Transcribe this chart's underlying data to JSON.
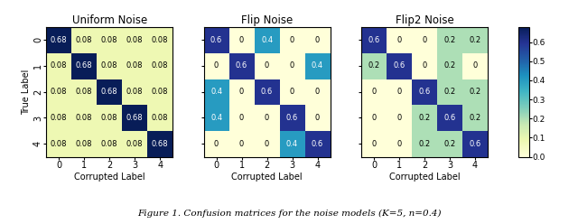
{
  "uniform_noise": [
    [
      0.68,
      0.08,
      0.08,
      0.08,
      0.08
    ],
    [
      0.08,
      0.68,
      0.08,
      0.08,
      0.08
    ],
    [
      0.08,
      0.08,
      0.68,
      0.08,
      0.08
    ],
    [
      0.08,
      0.08,
      0.08,
      0.68,
      0.08
    ],
    [
      0.08,
      0.08,
      0.08,
      0.08,
      0.68
    ]
  ],
  "flip_noise": [
    [
      0.6,
      0.0,
      0.4,
      0.0,
      0.0
    ],
    [
      0.0,
      0.6,
      0.0,
      0.0,
      0.4
    ],
    [
      0.4,
      0.0,
      0.6,
      0.0,
      0.0
    ],
    [
      0.4,
      0.0,
      0.0,
      0.6,
      0.0
    ],
    [
      0.0,
      0.0,
      0.0,
      0.4,
      0.6
    ]
  ],
  "flip2_noise": [
    [
      0.6,
      0.0,
      0.0,
      0.2,
      0.2
    ],
    [
      0.2,
      0.6,
      0.0,
      0.2,
      0.0
    ],
    [
      0.0,
      0.0,
      0.6,
      0.2,
      0.2
    ],
    [
      0.0,
      0.0,
      0.2,
      0.6,
      0.2
    ],
    [
      0.0,
      0.0,
      0.2,
      0.2,
      0.6
    ]
  ],
  "titles": [
    "Uniform Noise",
    "Flip Noise",
    "Flip2 Noise"
  ],
  "xlabel": "Corrupted Label",
  "ylabel": "True Label",
  "tick_labels": [
    "0",
    "1",
    "2",
    "3",
    "4"
  ],
  "vmin": 0.0,
  "vmax": 0.68,
  "cmap": "YlGnBu",
  "colorbar_ticks": [
    0.0,
    0.1,
    0.2,
    0.3,
    0.4,
    0.5,
    0.6
  ],
  "figure_caption": "Figure 1. Confusion matrices for the noise models (K=5, n=0.4)",
  "text_threshold_white": 0.35,
  "fontsize_cell": 6.0,
  "fontsize_title": 8.5,
  "fontsize_label": 7.0,
  "fontsize_tick": 7.0,
  "fontsize_caption": 7.5,
  "fontsize_cbar": 6.5
}
